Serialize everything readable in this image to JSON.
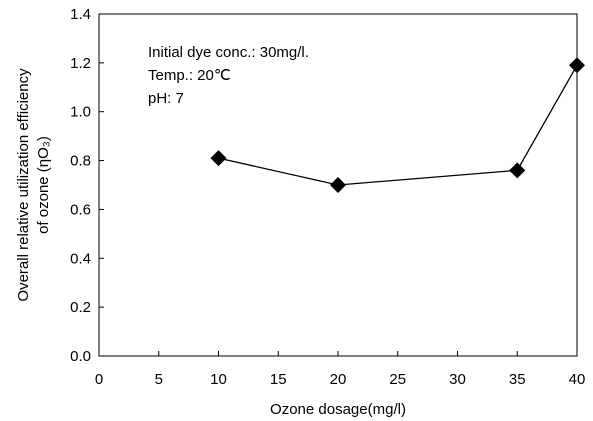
{
  "chart_data": {
    "type": "line",
    "title": "",
    "xlabel": "Ozone dosage(mg/l)",
    "ylabel_line1": "Overall relative utilization efficiency",
    "ylabel_line2": "of ozone (ηO₃)",
    "xlim": [
      0,
      40
    ],
    "ylim": [
      0,
      1.4
    ],
    "x_ticks": [
      "0",
      "5",
      "10",
      "15",
      "20",
      "25",
      "30",
      "35",
      "40"
    ],
    "y_ticks": [
      "0.0",
      "0.2",
      "0.4",
      "0.6",
      "0.8",
      "1.0",
      "1.2",
      "1.4"
    ],
    "grid": false,
    "annotations": [
      "Initial dye conc.: 30mg/l.",
      "Temp.: 20℃",
      "pH: 7"
    ],
    "series": [
      {
        "marker": "diamond",
        "color": "#000000",
        "x": [
          10,
          20,
          35,
          40
        ],
        "y": [
          0.81,
          0.7,
          0.76,
          1.19
        ]
      }
    ]
  }
}
